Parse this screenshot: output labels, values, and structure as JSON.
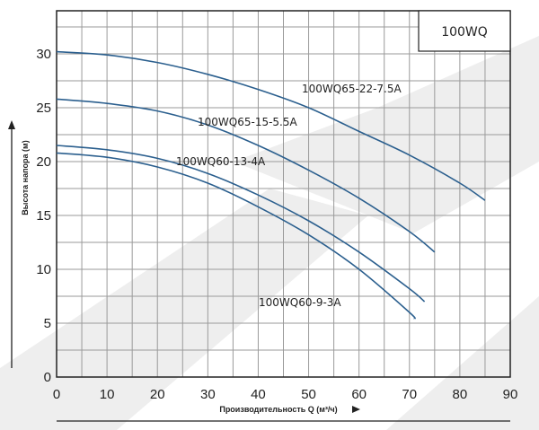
{
  "chart_data": {
    "type": "line",
    "title": "",
    "xlabel": "Производительность Q (м³/ч)",
    "ylabel": "Высота напора (м)",
    "xlim": [
      0,
      90
    ],
    "ylim": [
      0,
      34
    ],
    "x_ticks": [
      "0",
      "10",
      "20",
      "30",
      "40",
      "50",
      "60",
      "70",
      "80",
      "90"
    ],
    "y_ticks": [
      "0",
      "5",
      "10",
      "15",
      "20",
      "25",
      "30"
    ],
    "grid": true,
    "box_label": "100WQ",
    "line_color": "#2b5f8e",
    "watermark_color": "#eeeeee",
    "series": [
      {
        "name": "100WQ65-22-7.5A",
        "x": [
          0,
          10,
          20,
          30,
          40,
          50,
          60,
          70,
          80,
          85
        ],
        "y": [
          30.2,
          29.9,
          29.2,
          28.1,
          26.7,
          25.0,
          22.8,
          20.6,
          18.0,
          16.4
        ]
      },
      {
        "name": "100WQ65-15-5.5A",
        "x": [
          0,
          10,
          20,
          30,
          40,
          50,
          60,
          70,
          75
        ],
        "y": [
          25.8,
          25.4,
          24.7,
          23.4,
          21.5,
          19.2,
          16.6,
          13.5,
          11.6
        ]
      },
      {
        "name": "100WQ60-13-4A",
        "x": [
          0,
          10,
          20,
          30,
          40,
          50,
          60,
          70,
          73
        ],
        "y": [
          21.5,
          21.1,
          20.3,
          18.9,
          16.9,
          14.5,
          11.6,
          8.2,
          7.0
        ]
      },
      {
        "name": "100WQ60-9-3A",
        "x": [
          0,
          10,
          20,
          30,
          40,
          50,
          60,
          70,
          71
        ],
        "y": [
          20.8,
          20.4,
          19.5,
          18.0,
          15.8,
          13.2,
          10.0,
          6.0,
          5.4
        ]
      }
    ]
  }
}
